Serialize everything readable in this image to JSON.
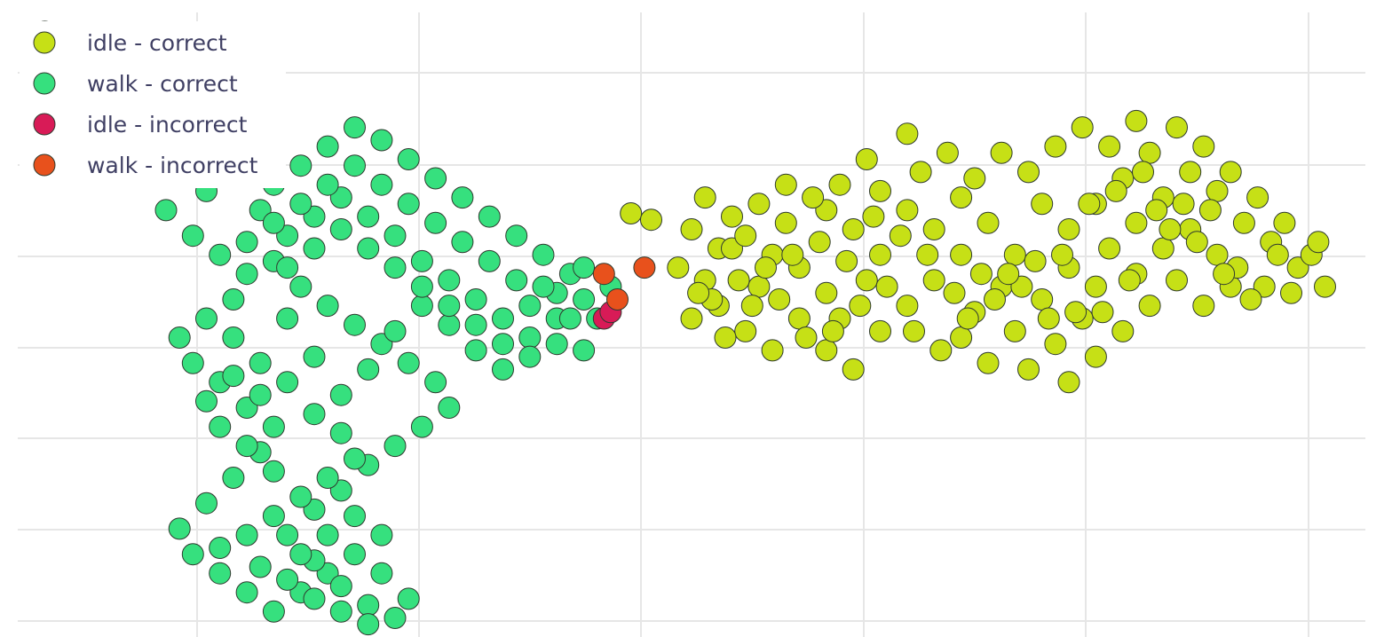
{
  "chart_data": {
    "type": "scatter",
    "title": "",
    "xlabel": "",
    "ylabel": "",
    "xlim": [
      0,
      1
    ],
    "ylim": [
      0,
      1
    ],
    "grid": true,
    "legend_placement": "top-left",
    "series": [
      {
        "name": "idle - correct",
        "color": "#c6e016",
        "points": [
          [
            0.455,
            0.335
          ],
          [
            0.47,
            0.345
          ],
          [
            0.5,
            0.36
          ],
          [
            0.52,
            0.39
          ],
          [
            0.49,
            0.42
          ],
          [
            0.51,
            0.44
          ],
          [
            0.53,
            0.39
          ],
          [
            0.55,
            0.45
          ],
          [
            0.52,
            0.48
          ],
          [
            0.5,
            0.5
          ],
          [
            0.54,
            0.52
          ],
          [
            0.56,
            0.55
          ],
          [
            0.58,
            0.5
          ],
          [
            0.6,
            0.46
          ],
          [
            0.58,
            0.42
          ],
          [
            0.56,
            0.4
          ],
          [
            0.54,
            0.37
          ],
          [
            0.57,
            0.35
          ],
          [
            0.6,
            0.33
          ],
          [
            0.62,
            0.36
          ],
          [
            0.64,
            0.4
          ],
          [
            0.63,
            0.44
          ],
          [
            0.61,
            0.5
          ],
          [
            0.6,
            0.55
          ],
          [
            0.62,
            0.58
          ],
          [
            0.64,
            0.52
          ],
          [
            0.66,
            0.48
          ],
          [
            0.68,
            0.44
          ],
          [
            0.7,
            0.4
          ],
          [
            0.68,
            0.36
          ],
          [
            0.66,
            0.33
          ],
          [
            0.64,
            0.3
          ],
          [
            0.67,
            0.27
          ],
          [
            0.7,
            0.31
          ],
          [
            0.72,
            0.35
          ],
          [
            0.74,
            0.4
          ],
          [
            0.73,
            0.45
          ],
          [
            0.71,
            0.49
          ],
          [
            0.7,
            0.53
          ],
          [
            0.72,
            0.57
          ],
          [
            0.74,
            0.52
          ],
          [
            0.76,
            0.47
          ],
          [
            0.78,
            0.42
          ],
          [
            0.8,
            0.45
          ],
          [
            0.79,
            0.5
          ],
          [
            0.77,
            0.54
          ],
          [
            0.75,
            0.58
          ],
          [
            0.78,
            0.6
          ],
          [
            0.8,
            0.56
          ],
          [
            0.82,
            0.52
          ],
          [
            0.84,
            0.48
          ],
          [
            0.83,
            0.43
          ],
          [
            0.81,
            0.39
          ],
          [
            0.83,
            0.35
          ],
          [
            0.85,
            0.39
          ],
          [
            0.86,
            0.44
          ],
          [
            0.88,
            0.48
          ],
          [
            0.9,
            0.45
          ],
          [
            0.89,
            0.4
          ],
          [
            0.87,
            0.36
          ],
          [
            0.85,
            0.31
          ],
          [
            0.87,
            0.27
          ],
          [
            0.89,
            0.3
          ],
          [
            0.91,
            0.35
          ],
          [
            0.93,
            0.38
          ],
          [
            0.95,
            0.42
          ],
          [
            0.97,
            0.45
          ],
          [
            0.96,
            0.4
          ],
          [
            0.94,
            0.35
          ],
          [
            0.92,
            0.31
          ],
          [
            0.9,
            0.27
          ],
          [
            0.88,
            0.23
          ],
          [
            0.86,
            0.2
          ],
          [
            0.84,
            0.24
          ],
          [
            0.82,
            0.28
          ],
          [
            0.8,
            0.32
          ],
          [
            0.78,
            0.36
          ],
          [
            0.76,
            0.32
          ],
          [
            0.75,
            0.27
          ],
          [
            0.77,
            0.23
          ],
          [
            0.79,
            0.2
          ],
          [
            0.81,
            0.23
          ],
          [
            0.83,
            0.19
          ],
          [
            0.73,
            0.24
          ],
          [
            0.71,
            0.28
          ],
          [
            0.69,
            0.24
          ],
          [
            0.66,
            0.21
          ],
          [
            0.63,
            0.25
          ],
          [
            0.61,
            0.29
          ],
          [
            0.59,
            0.31
          ],
          [
            0.57,
            0.29
          ],
          [
            0.55,
            0.32
          ],
          [
            0.53,
            0.34
          ],
          [
            0.51,
            0.31
          ],
          [
            0.515,
            0.47
          ],
          [
            0.525,
            0.53
          ],
          [
            0.545,
            0.48
          ],
          [
            0.565,
            0.47
          ],
          [
            0.585,
            0.53
          ],
          [
            0.605,
            0.52
          ],
          [
            0.625,
            0.48
          ],
          [
            0.645,
            0.45
          ],
          [
            0.665,
            0.52
          ],
          [
            0.685,
            0.55
          ],
          [
            0.705,
            0.5
          ],
          [
            0.725,
            0.47
          ],
          [
            0.745,
            0.45
          ],
          [
            0.765,
            0.5
          ],
          [
            0.785,
            0.49
          ],
          [
            0.805,
            0.49
          ],
          [
            0.825,
            0.44
          ],
          [
            0.845,
            0.33
          ],
          [
            0.865,
            0.32
          ],
          [
            0.885,
            0.33
          ],
          [
            0.905,
            0.42
          ],
          [
            0.925,
            0.45
          ],
          [
            0.945,
            0.46
          ],
          [
            0.965,
            0.38
          ],
          [
            0.935,
            0.4
          ],
          [
            0.915,
            0.47
          ],
          [
            0.895,
            0.43
          ],
          [
            0.875,
            0.38
          ],
          [
            0.855,
            0.36
          ],
          [
            0.835,
            0.27
          ],
          [
            0.815,
            0.3
          ],
          [
            0.795,
            0.32
          ],
          [
            0.775,
            0.4
          ],
          [
            0.755,
            0.41
          ],
          [
            0.735,
            0.43
          ],
          [
            0.715,
            0.43
          ],
          [
            0.695,
            0.46
          ],
          [
            0.675,
            0.4
          ],
          [
            0.655,
            0.37
          ],
          [
            0.635,
            0.34
          ],
          [
            0.615,
            0.41
          ],
          [
            0.595,
            0.38
          ],
          [
            0.575,
            0.4
          ],
          [
            0.555,
            0.42
          ],
          [
            0.535,
            0.44
          ],
          [
            0.505,
            0.46
          ]
        ]
      },
      {
        "name": "walk - correct",
        "color": "#36e07e",
        "points": [
          [
            0.02,
            0.05
          ],
          [
            0.03,
            0.09
          ],
          [
            0.05,
            0.12
          ],
          [
            0.07,
            0.15
          ],
          [
            0.09,
            0.18
          ],
          [
            0.06,
            0.2
          ],
          [
            0.04,
            0.22
          ],
          [
            0.08,
            0.24
          ],
          [
            0.1,
            0.22
          ],
          [
            0.12,
            0.26
          ],
          [
            0.14,
            0.3
          ],
          [
            0.11,
            0.33
          ],
          [
            0.13,
            0.37
          ],
          [
            0.15,
            0.4
          ],
          [
            0.17,
            0.43
          ],
          [
            0.16,
            0.47
          ],
          [
            0.14,
            0.5
          ],
          [
            0.12,
            0.53
          ],
          [
            0.13,
            0.57
          ],
          [
            0.15,
            0.6
          ],
          [
            0.17,
            0.64
          ],
          [
            0.19,
            0.67
          ],
          [
            0.18,
            0.71
          ],
          [
            0.16,
            0.75
          ],
          [
            0.14,
            0.79
          ],
          [
            0.12,
            0.83
          ],
          [
            0.13,
            0.87
          ],
          [
            0.15,
            0.9
          ],
          [
            0.17,
            0.93
          ],
          [
            0.19,
            0.96
          ],
          [
            0.21,
            0.93
          ],
          [
            0.23,
            0.9
          ],
          [
            0.25,
            0.87
          ],
          [
            0.27,
            0.9
          ],
          [
            0.29,
            0.94
          ],
          [
            0.28,
            0.97
          ],
          [
            0.26,
            0.95
          ],
          [
            0.24,
            0.92
          ],
          [
            0.22,
            0.88
          ],
          [
            0.2,
            0.84
          ],
          [
            0.22,
            0.8
          ],
          [
            0.24,
            0.77
          ],
          [
            0.26,
            0.73
          ],
          [
            0.28,
            0.7
          ],
          [
            0.3,
            0.67
          ],
          [
            0.32,
            0.64
          ],
          [
            0.31,
            0.6
          ],
          [
            0.29,
            0.57
          ],
          [
            0.27,
            0.54
          ],
          [
            0.25,
            0.51
          ],
          [
            0.23,
            0.48
          ],
          [
            0.21,
            0.45
          ],
          [
            0.19,
            0.41
          ],
          [
            0.2,
            0.37
          ],
          [
            0.22,
            0.34
          ],
          [
            0.24,
            0.31
          ],
          [
            0.26,
            0.34
          ],
          [
            0.28,
            0.37
          ],
          [
            0.3,
            0.41
          ],
          [
            0.32,
            0.44
          ],
          [
            0.34,
            0.47
          ],
          [
            0.36,
            0.5
          ],
          [
            0.38,
            0.53
          ],
          [
            0.4,
            0.5
          ],
          [
            0.42,
            0.47
          ],
          [
            0.41,
            0.43
          ],
          [
            0.39,
            0.4
          ],
          [
            0.37,
            0.37
          ],
          [
            0.35,
            0.34
          ],
          [
            0.33,
            0.31
          ],
          [
            0.31,
            0.28
          ],
          [
            0.29,
            0.25
          ],
          [
            0.27,
            0.22
          ],
          [
            0.25,
            0.2
          ],
          [
            0.23,
            0.23
          ],
          [
            0.21,
            0.26
          ],
          [
            0.19,
            0.29
          ],
          [
            0.17,
            0.26
          ],
          [
            0.15,
            0.23
          ],
          [
            0.13,
            0.2
          ],
          [
            0.11,
            0.18
          ],
          [
            0.09,
            0.15
          ],
          [
            0.07,
            0.12
          ],
          [
            0.05,
            0.08
          ],
          [
            0.18,
            0.33
          ],
          [
            0.2,
            0.5
          ],
          [
            0.22,
            0.56
          ],
          [
            0.24,
            0.62
          ],
          [
            0.26,
            0.58
          ],
          [
            0.28,
            0.52
          ],
          [
            0.3,
            0.48
          ],
          [
            0.32,
            0.51
          ],
          [
            0.34,
            0.55
          ],
          [
            0.36,
            0.58
          ],
          [
            0.38,
            0.56
          ],
          [
            0.4,
            0.54
          ],
          [
            0.43,
            0.5
          ],
          [
            0.44,
            0.45
          ],
          [
            0.42,
            0.42
          ],
          [
            0.4,
            0.46
          ],
          [
            0.37,
            0.44
          ],
          [
            0.35,
            0.41
          ],
          [
            0.33,
            0.38
          ],
          [
            0.31,
            0.35
          ],
          [
            0.29,
            0.32
          ],
          [
            0.27,
            0.29
          ],
          [
            0.25,
            0.26
          ],
          [
            0.23,
            0.29
          ],
          [
            0.21,
            0.32
          ],
          [
            0.19,
            0.35
          ],
          [
            0.17,
            0.38
          ],
          [
            0.16,
            0.53
          ],
          [
            0.18,
            0.57
          ],
          [
            0.2,
            0.6
          ],
          [
            0.22,
            0.65
          ],
          [
            0.24,
            0.68
          ],
          [
            0.25,
            0.72
          ],
          [
            0.23,
            0.75
          ],
          [
            0.21,
            0.78
          ],
          [
            0.19,
            0.81
          ],
          [
            0.17,
            0.84
          ],
          [
            0.15,
            0.86
          ],
          [
            0.18,
            0.89
          ],
          [
            0.2,
            0.91
          ],
          [
            0.22,
            0.94
          ],
          [
            0.24,
            0.96
          ],
          [
            0.26,
            0.98
          ],
          [
            0.27,
            0.84
          ],
          [
            0.25,
            0.81
          ],
          [
            0.23,
            0.84
          ],
          [
            0.21,
            0.87
          ],
          [
            0.19,
            0.74
          ],
          [
            0.17,
            0.7
          ],
          [
            0.15,
            0.67
          ],
          [
            0.14,
            0.63
          ],
          [
            0.16,
            0.59
          ],
          [
            0.18,
            0.62
          ],
          [
            0.2,
            0.42
          ],
          [
            0.22,
            0.39
          ],
          [
            0.24,
            0.36
          ],
          [
            0.26,
            0.39
          ],
          [
            0.28,
            0.42
          ],
          [
            0.3,
            0.45
          ],
          [
            0.32,
            0.48
          ],
          [
            0.34,
            0.51
          ],
          [
            0.36,
            0.54
          ],
          [
            0.38,
            0.48
          ],
          [
            0.39,
            0.45
          ],
          [
            0.41,
            0.5
          ],
          [
            0.42,
            0.55
          ]
        ]
      },
      {
        "name": "idle - incorrect",
        "color": "#d81b57",
        "points": [
          [
            0.435,
            0.5
          ],
          [
            0.44,
            0.49
          ]
        ]
      },
      {
        "name": "walk - incorrect",
        "color": "#e8511c",
        "points": [
          [
            0.435,
            0.43
          ],
          [
            0.465,
            0.42
          ],
          [
            0.445,
            0.47
          ]
        ]
      }
    ]
  }
}
